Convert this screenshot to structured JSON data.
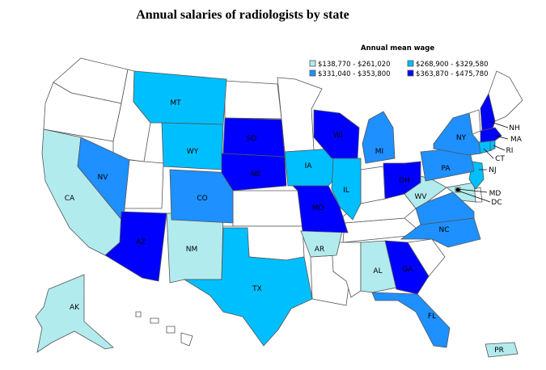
{
  "title": "Annual salaries of radiologists by state",
  "legend": {
    "title": "Annual mean wage",
    "bins": [
      {
        "label": "$138,770 - $261,020",
        "color": "#b2ebee"
      },
      {
        "label": "$268,900 - $329,580",
        "color": "#00bfff"
      },
      {
        "label": "$331,040 - $353,800",
        "color": "#1e90ff"
      },
      {
        "label": "$363,870 - $475,780",
        "color": "#0000ff"
      }
    ]
  },
  "colors": {
    "nodata": "#ffffff",
    "outline": "#555555"
  },
  "states": [
    {
      "abbr": "AK",
      "bin": 0
    },
    {
      "abbr": "CA",
      "bin": 0
    },
    {
      "abbr": "NM",
      "bin": 0
    },
    {
      "abbr": "AR",
      "bin": 0
    },
    {
      "abbr": "AL",
      "bin": 0
    },
    {
      "abbr": "WV",
      "bin": 0
    },
    {
      "abbr": "MD",
      "bin": 0
    },
    {
      "abbr": "DC",
      "bin": 0
    },
    {
      "abbr": "PR",
      "bin": 0
    },
    {
      "abbr": "MT",
      "bin": 1
    },
    {
      "abbr": "WY",
      "bin": 1
    },
    {
      "abbr": "TX",
      "bin": 1
    },
    {
      "abbr": "IA",
      "bin": 1
    },
    {
      "abbr": "IL",
      "bin": 1
    },
    {
      "abbr": "NJ",
      "bin": 1
    },
    {
      "abbr": "CT",
      "bin": 1
    },
    {
      "abbr": "RI",
      "bin": 1
    },
    {
      "abbr": "NV",
      "bin": 2
    },
    {
      "abbr": "CO",
      "bin": 2
    },
    {
      "abbr": "MI",
      "bin": 2
    },
    {
      "abbr": "PA",
      "bin": 2
    },
    {
      "abbr": "NY",
      "bin": 2
    },
    {
      "abbr": "NC",
      "bin": 2
    },
    {
      "abbr": "FL",
      "bin": 2
    },
    {
      "abbr": "VA",
      "bin": 2
    },
    {
      "abbr": "AZ",
      "bin": 3
    },
    {
      "abbr": "SD",
      "bin": 3
    },
    {
      "abbr": "NE",
      "bin": 3
    },
    {
      "abbr": "MO",
      "bin": 3
    },
    {
      "abbr": "WI",
      "bin": 3
    },
    {
      "abbr": "OH",
      "bin": 3
    },
    {
      "abbr": "GA",
      "bin": 3
    },
    {
      "abbr": "NH",
      "bin": 3
    },
    {
      "abbr": "MA",
      "bin": 3
    }
  ]
}
